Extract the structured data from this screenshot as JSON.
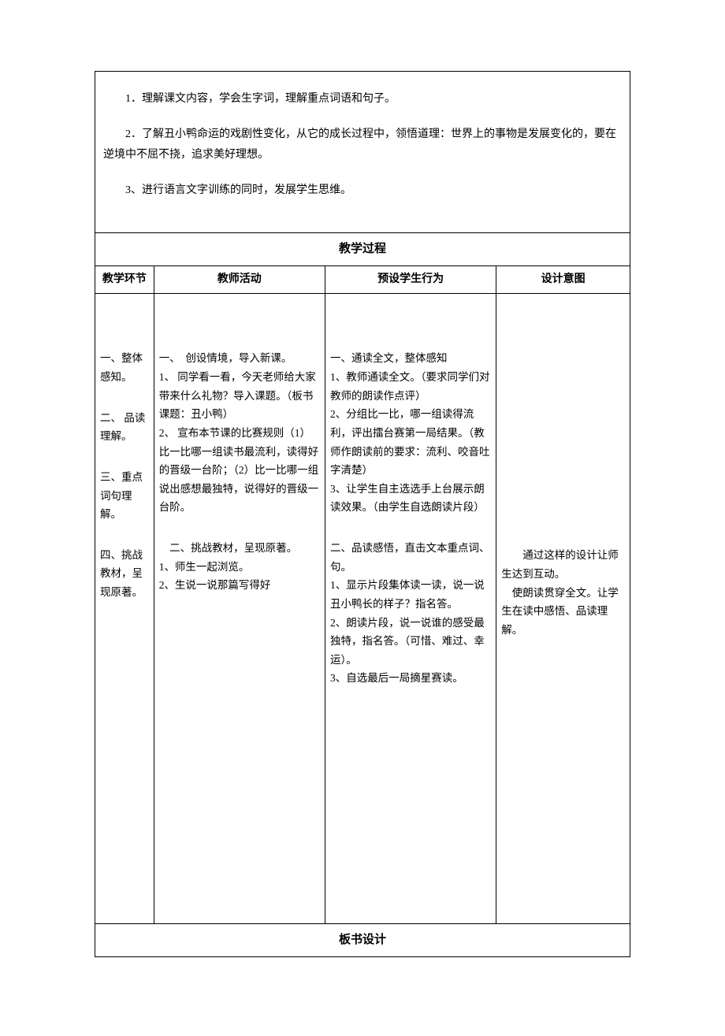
{
  "objectives": {
    "item1": "1．理解课文内容，学会生字词，理解重点词语和句子。",
    "item2": "2．了解丑小鸭命运的戏剧性变化，从它的成长过程中，领悟道理：世界上的事物是发展变化的，要在逆境中不屈不挠，追求美好理想。",
    "item3": "3、进行语言文字训练的同时，发展学生思维。"
  },
  "process_header": "教学过程",
  "columns": {
    "col1": "教学环节",
    "col2": "教师活动",
    "col3": "预设学生行为",
    "col4": "设计意图"
  },
  "stages": {
    "s1": "一、整体感知。",
    "s2": "二、 品读理解。",
    "s3": "三、重点词句理解。",
    "s4": "四、挑战教材，呈现原著。"
  },
  "teacher": {
    "block1_title": "一、　创设情境，导入新课。",
    "block1_1": "1、 同学看一看，今天老师给大家带来什么礼物？导入课题。（板书课题：丑小鸭）",
    "block1_2": "2、 宣布本节课的比赛规则（1）比一比哪一组读书最流利，读得好的晋级一台阶；（2）比一比哪一组说出感想最独特，说得好的晋级一台阶。",
    "block2_title": "　二、挑战教材，呈现原著。",
    "block2_1": "1、师生一起浏览。",
    "block2_2": "2、生说一说那篇写得好"
  },
  "student": {
    "block1_title": "一、通读全文，整体感知",
    "block1_1": "1、教师通读全文。（要求同学们对教师的朗读作点评）",
    "block1_2": "2、分组比一比，哪一组读得流利，评出擂台赛第一局结果。（教师作朗读前的要求：流利、咬音吐字清楚）",
    "block1_3": " 3、让学生自主选选手上台展示朗读效果。（由学生自选朗读片段）",
    "block2_title": " 二、品读感悟，直击文本重点词、句。",
    "block2_1": " 1、显示片段集体读一读，说一说丑小鸭长的样子？指名答。",
    "block2_2": " 2、朗读片段，说一说谁的感受最独特，指名答。（可惜、难过、幸运）。",
    "block2_3": " 3、自选最后一局摘星赛读。"
  },
  "intent": {
    "line1": "　　通过这样的设计让师生达到互动。",
    "line2": "　使朗读贯穿全文。让学生在读中感悟、品读理解。"
  },
  "board_design_header": "板书设计"
}
